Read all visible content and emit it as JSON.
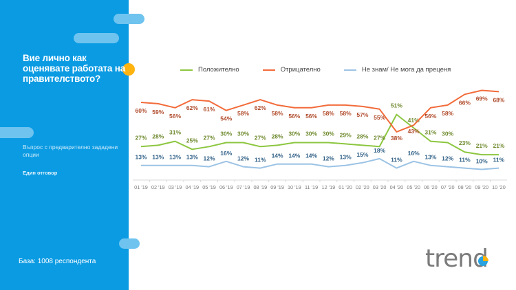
{
  "sidebar": {
    "question": "Вие лично как оценявате работата на правителството?",
    "note": "Въпрос с предварително зададени опции",
    "answer_type": "Един отговор",
    "base": "База: 1008 респондента",
    "colors": {
      "panel": "#0a9be3",
      "pill": "#6fc3ef",
      "accent_dot": "#ffb30f"
    }
  },
  "legend": {
    "items": [
      {
        "label": "Положително",
        "color": "#8cc63f"
      },
      {
        "label": "Отрицателно",
        "color": "#f26b3a"
      },
      {
        "label": "Не знам/ Не мога да преценя",
        "color": "#9cc3e5"
      }
    ]
  },
  "logo": {
    "text": "trend"
  },
  "chart_data": {
    "type": "line",
    "title": "Вие лично как оценявате работата на правителството?",
    "xlabel": "",
    "ylabel": "",
    "categories": [
      "01 '19",
      "02 '19",
      "03 '19",
      "04 '19",
      "05 '19",
      "06 '19",
      "07 '19",
      "08 '19",
      "09 '19",
      "10 '19",
      "11 '19",
      "12 '19",
      "01 '20",
      "02 '20",
      "03 '20",
      "04 '20",
      "05 '20",
      "06 '20",
      "07 '20",
      "08 '20",
      "09 '20",
      "10 '20"
    ],
    "series": [
      {
        "name": "Положително",
        "color": "#8cc63f",
        "label_color": "#6f8a2e",
        "values": [
          27,
          28,
          31,
          25,
          27,
          30,
          30,
          27,
          28,
          30,
          30,
          30,
          29,
          28,
          27,
          51,
          41,
          31,
          30,
          23,
          21,
          21
        ]
      },
      {
        "name": "Отрицателно",
        "color": "#f26b3a",
        "label_color": "#b04a2a",
        "values": [
          60,
          59,
          56,
          62,
          61,
          54,
          58,
          62,
          58,
          56,
          56,
          58,
          58,
          57,
          55,
          38,
          43,
          56,
          58,
          66,
          69,
          68
        ]
      },
      {
        "name": "Не знам/ Не мога да преценя",
        "color": "#9cc3e5",
        "label_color": "#2f5f86",
        "values": [
          13,
          13,
          13,
          13,
          12,
          16,
          12,
          11,
          14,
          14,
          14,
          12,
          13,
          15,
          18,
          11,
          16,
          13,
          12,
          11,
          10,
          11
        ]
      }
    ],
    "value_suffix": "%",
    "ylim": [
      0,
      80
    ],
    "grid": false,
    "legend_position": "top"
  }
}
